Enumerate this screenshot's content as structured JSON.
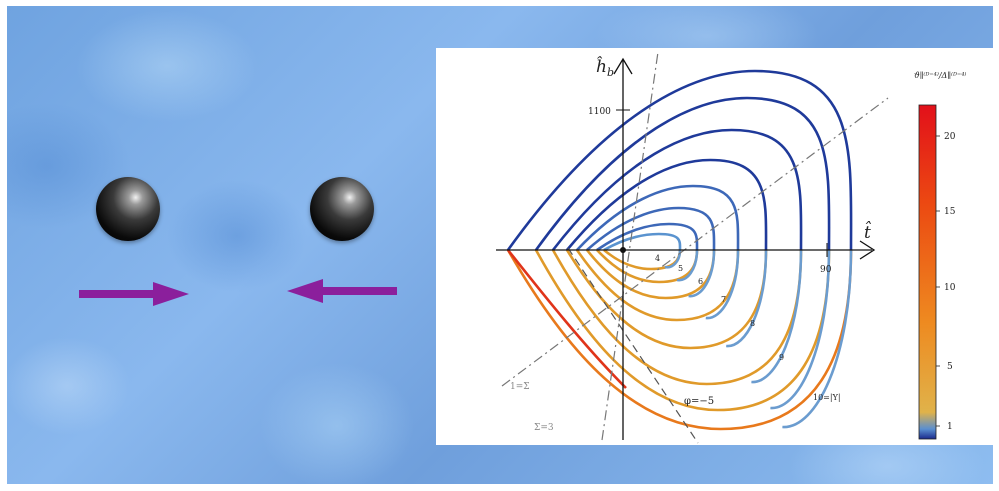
{
  "colors": {
    "arrow": "#8b1f9c",
    "ball": "#111111",
    "axis": "#111111"
  },
  "diagram": {
    "axis_x_label": "t̂",
    "axis_y_label": "ĥ",
    "axis_y_subscript": "b",
    "y_tick_label": "1100",
    "x_tick_label": "90",
    "curve_labels": [
      "4",
      "5",
      "6",
      "7",
      "8",
      "9",
      "10=|Υ|"
    ],
    "annotation_phi": "φ=−5",
    "annotation_sigma1": "1=Σ",
    "annotation_sigma3": "Σ=3",
    "colorbar_title": "ϑ∥⁽ᴰ⁼⁴⁾/Δ∥⁽ᴰ⁼⁴⁾",
    "colorbar_ticks": [
      "20",
      "15",
      "10",
      "5",
      "1"
    ]
  }
}
